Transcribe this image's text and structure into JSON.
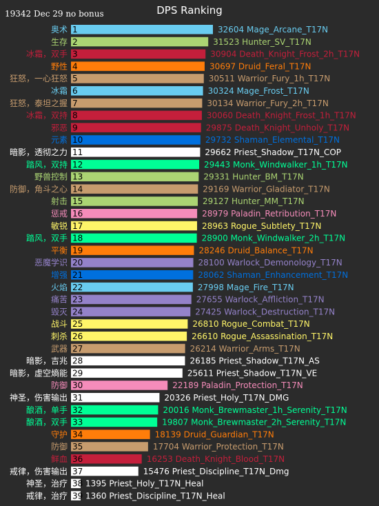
{
  "chart_data": {
    "type": "bar",
    "orientation": "horizontal",
    "title": "DPS Ranking",
    "note": "19342 Dec 29 no bonus",
    "rows": [
      {
        "rank": 1,
        "cn": "奥术",
        "value": 32604,
        "name": "Mage_Arcane_T17N",
        "color": "#69ccf0"
      },
      {
        "rank": 2,
        "cn": "生存",
        "value": 31523,
        "name": "Hunter_SV_T17N",
        "color": "#abd473"
      },
      {
        "rank": 3,
        "cn": "冰霜，双手",
        "value": 30904,
        "name": "Death_Knight_Frost_2h_T17N",
        "color": "#c41f3b"
      },
      {
        "rank": 4,
        "cn": "野性",
        "value": 30697,
        "name": "Druid_Feral_T17N",
        "color": "#ff7d0a"
      },
      {
        "rank": 5,
        "cn": "狂怒，一心狂怒",
        "value": 30511,
        "name": "Warrior_Fury_1h_T17N",
        "color": "#c79c6e"
      },
      {
        "rank": 6,
        "cn": "冰霜",
        "value": 30324,
        "name": "Mage_Frost_T17N",
        "color": "#69ccf0"
      },
      {
        "rank": 7,
        "cn": "狂怒，泰坦之握",
        "value": 30134,
        "name": "Warrior_Fury_2h_T17N",
        "color": "#c79c6e"
      },
      {
        "rank": 8,
        "cn": "冰霜，双持",
        "value": 30060,
        "name": "Death_Knight_Frost_1h_T17N",
        "color": "#c41f3b"
      },
      {
        "rank": 9,
        "cn": "邪恶",
        "value": 29875,
        "name": "Death_Knight_Unholy_T17N",
        "color": "#c41f3b"
      },
      {
        "rank": 10,
        "cn": "元素",
        "value": 29732,
        "name": "Shaman_Elemental_T17N",
        "color": "#0070de"
      },
      {
        "rank": 11,
        "cn": "暗影，透彻之力",
        "value": 29662,
        "name": "Priest_Shadow_T17N_COP",
        "color": "#ffffff"
      },
      {
        "rank": 12,
        "cn": "踏风，双持",
        "value": 29443,
        "name": "Monk_Windwalker_1h_T17N",
        "color": "#00ff96"
      },
      {
        "rank": 13,
        "cn": "野兽控制",
        "value": 29331,
        "name": "Hunter_BM_T17N",
        "color": "#abd473"
      },
      {
        "rank": 14,
        "cn": "防御，角斗之心",
        "value": 29169,
        "name": "Warrior_Gladiator_T17N",
        "color": "#c79c6e"
      },
      {
        "rank": 15,
        "cn": "射击",
        "value": 29127,
        "name": "Hunter_MM_T17N",
        "color": "#abd473"
      },
      {
        "rank": 16,
        "cn": "惩戒",
        "value": 28979,
        "name": "Paladin_Retribution_T17N",
        "color": "#f58cba"
      },
      {
        "rank": 17,
        "cn": "敏锐",
        "value": 28963,
        "name": "Rogue_Subtlety_T17N",
        "color": "#fff569"
      },
      {
        "rank": 18,
        "cn": "踏风，双手",
        "value": 28900,
        "name": "Monk_Windwalker_2h_T17N",
        "color": "#00ff96"
      },
      {
        "rank": 19,
        "cn": "平衡",
        "value": 28246,
        "name": "Druid_Balance_T17N",
        "color": "#ff7d0a"
      },
      {
        "rank": 20,
        "cn": "恶魔学识",
        "value": 28100,
        "name": "Warlock_Demonology_T17N",
        "color": "#9482c9"
      },
      {
        "rank": 21,
        "cn": "增强",
        "value": 28062,
        "name": "Shaman_Enhancement_T17N",
        "color": "#0070de"
      },
      {
        "rank": 22,
        "cn": "火焰",
        "value": 27998,
        "name": "Mage_Fire_T17N",
        "color": "#69ccf0"
      },
      {
        "rank": 23,
        "cn": "痛苦",
        "value": 27655,
        "name": "Warlock_Affliction_T17N",
        "color": "#9482c9"
      },
      {
        "rank": 24,
        "cn": "毁灭",
        "value": 27425,
        "name": "Warlock_Destruction_T17N",
        "color": "#9482c9"
      },
      {
        "rank": 25,
        "cn": "战斗",
        "value": 26810,
        "name": "Rogue_Combat_T17N",
        "color": "#fff569"
      },
      {
        "rank": 26,
        "cn": "刺杀",
        "value": 26610,
        "name": "Rogue_Assassination_T17N",
        "color": "#fff569"
      },
      {
        "rank": 27,
        "cn": "武器",
        "value": 26214,
        "name": "Warrior_Arms_T17N",
        "color": "#c79c6e"
      },
      {
        "rank": 28,
        "cn": "暗影，吉兆",
        "value": 26185,
        "name": "Priest_Shadow_T17N_AS",
        "color": "#ffffff"
      },
      {
        "rank": 29,
        "cn": "暗影，虚空熵能",
        "value": 25611,
        "name": "Priest_Shadow_T17N_VE",
        "color": "#ffffff"
      },
      {
        "rank": 30,
        "cn": "防御",
        "value": 22189,
        "name": "Paladin_Protection_T17N",
        "color": "#f58cba"
      },
      {
        "rank": 31,
        "cn": "神圣，伤害输出",
        "value": 20326,
        "name": "Priest_Holy_T17N_DMG",
        "color": "#ffffff"
      },
      {
        "rank": 32,
        "cn": "酿酒，单手",
        "value": 20016,
        "name": "Monk_Brewmaster_1h_Serenity_T17N",
        "color": "#00ff96"
      },
      {
        "rank": 33,
        "cn": "酿酒，双手",
        "value": 19807,
        "name": "Monk_Brewmaster_2h_Serenity_T17N",
        "color": "#00ff96"
      },
      {
        "rank": 34,
        "cn": "守护",
        "value": 18139,
        "name": "Druid_Guardian_T17N",
        "color": "#ff7d0a"
      },
      {
        "rank": 35,
        "cn": "防御",
        "value": 17704,
        "name": "Warrior_Protection_T17N",
        "color": "#c79c6e"
      },
      {
        "rank": 36,
        "cn": "鲜血",
        "value": 16253,
        "name": "Death_Knight_Blood_T17N",
        "color": "#c41f3b"
      },
      {
        "rank": 37,
        "cn": "戒律，伤害输出",
        "value": 15476,
        "name": "Priest_Discipline_T17N_Dmg",
        "color": "#ffffff"
      },
      {
        "rank": 38,
        "cn": "神圣，治疗",
        "value": 1395,
        "name": "Priest_Holy_T17N_Heal",
        "color": "#ffffff"
      },
      {
        "rank": 39,
        "cn": "戒律，治疗",
        "value": 1360,
        "name": "Priest_Discipline_T17N_Heal",
        "color": "#ffffff"
      }
    ]
  }
}
